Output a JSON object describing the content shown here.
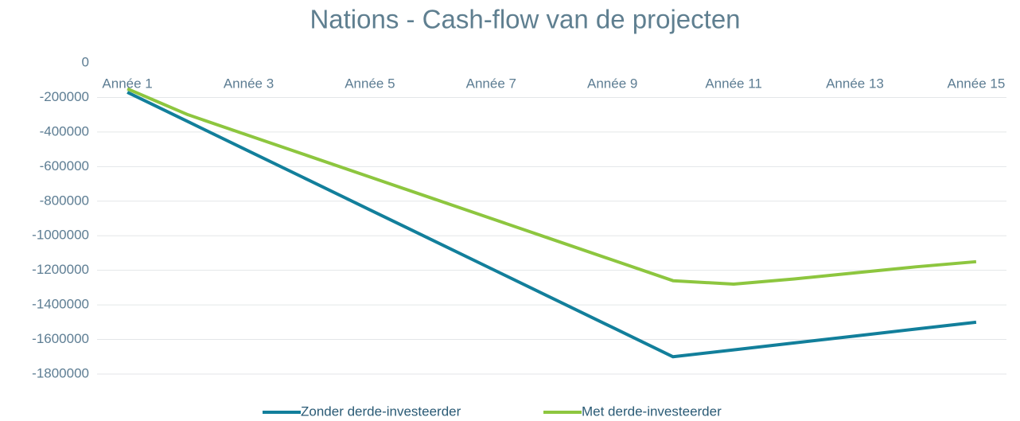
{
  "chart_data": {
    "type": "line",
    "title": "Nations - Cash-flow van de projecten",
    "categories": [
      "Année 1",
      null,
      "Année 3",
      null,
      "Année 5",
      null,
      "Année 7",
      null,
      "Année 9",
      null,
      "Année 11",
      null,
      "Année 13",
      null,
      "Année 15"
    ],
    "series": [
      {
        "name": "Zonder derde-investeerder",
        "color": "#127f9b",
        "values": [
          -170000,
          -340000,
          -510000,
          -680000,
          -850000,
          -1020000,
          -1190000,
          -1360000,
          -1530000,
          -1700000,
          -1660000,
          -1620000,
          -1580000,
          -1540000,
          -1500000
        ]
      },
      {
        "name": "Met derde-investeerder",
        "color": "#8dc63f",
        "values": [
          -150000,
          -300000,
          -420000,
          -540000,
          -660000,
          -780000,
          -900000,
          -1020000,
          -1140000,
          -1260000,
          -1280000,
          -1250000,
          -1215000,
          -1180000,
          -1150000
        ]
      }
    ],
    "ylim": [
      -1800000,
      0
    ],
    "yticks": [
      0,
      -200000,
      -400000,
      -600000,
      -800000,
      -1000000,
      -1200000,
      -1400000,
      -1600000,
      -1800000
    ],
    "grid": true,
    "legend": "bottom"
  }
}
